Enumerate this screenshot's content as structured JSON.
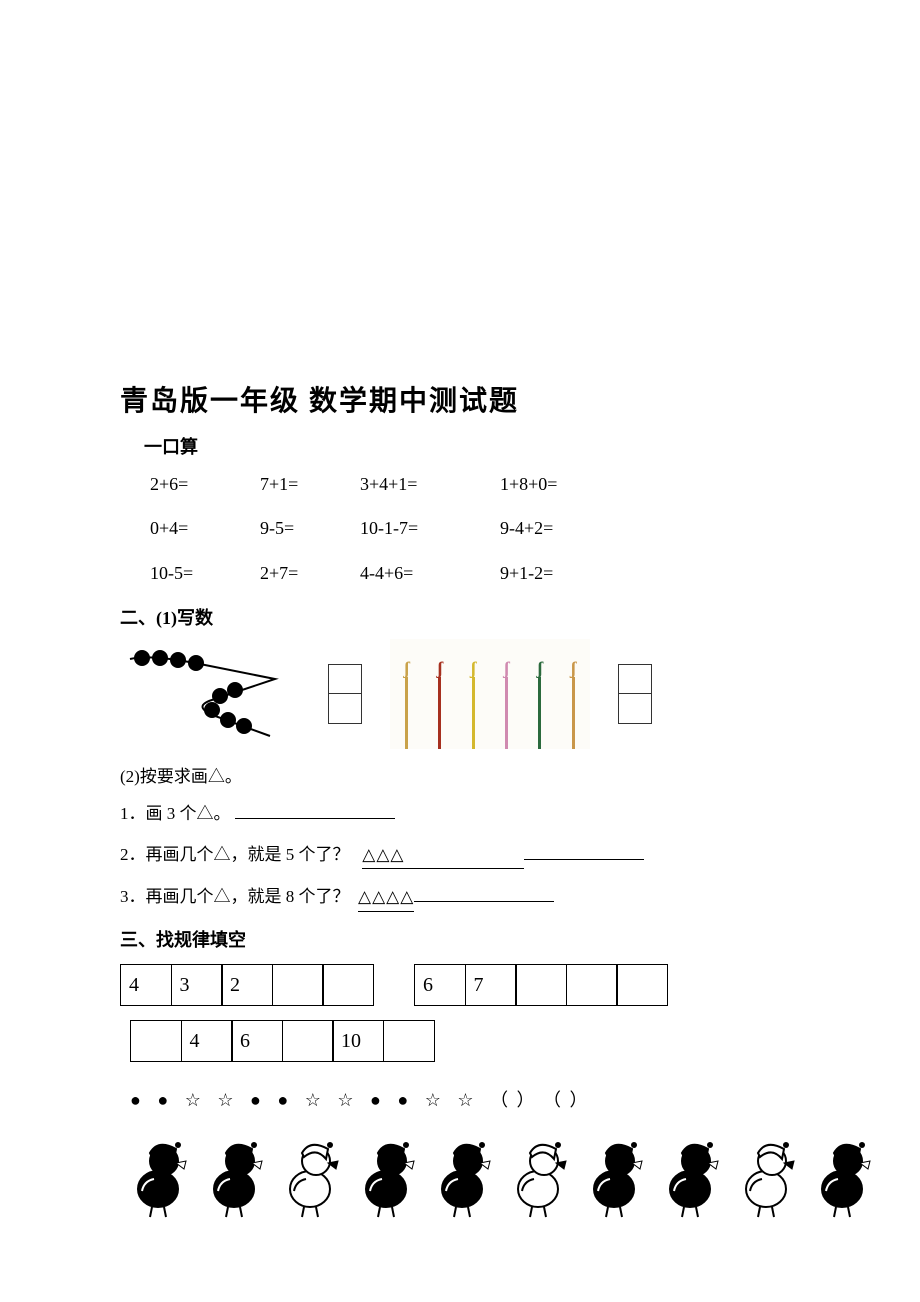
{
  "title": "青岛版一年级  数学期中测试题",
  "section1": {
    "label": "一口算",
    "rows": [
      [
        "2+6=",
        "7+1=",
        "3+4+1=",
        "1+8+0="
      ],
      [
        "0+4=",
        "9-5=",
        "10-1-7=",
        "9-4+2="
      ],
      [
        "10-5=",
        "2+7=",
        "4-4+6=",
        "9+1-2="
      ]
    ]
  },
  "section2": {
    "label": "二、(1)写数",
    "bead_count": 9,
    "bead_color": "#000000",
    "umbrellas": [
      {
        "color": "#c9a24a"
      },
      {
        "color": "#a6301f"
      },
      {
        "color": "#d4b82e"
      },
      {
        "color": "#d08ab0"
      },
      {
        "color": "#2b6a3d"
      },
      {
        "color": "#c9974a"
      }
    ],
    "sub_label": "(2)按要求画△。",
    "q1_prefix": "1．画 3 个△。",
    "q2_prefix": "2．再画几个△，就是 5 个了？",
    "q2_tri": "△△△",
    "q3_prefix": "3．再画几个△，就是 8 个了？",
    "q3_tri": "△△△△"
  },
  "section3": {
    "label": "三、找规律填空",
    "table_a": [
      "4",
      "3",
      "2",
      "",
      ""
    ],
    "table_b": [
      "6",
      "7",
      "",
      "",
      ""
    ],
    "table_c": [
      "",
      "4",
      "6",
      "",
      "10",
      ""
    ],
    "pattern_symbols": "● ● ☆ ☆ ● ● ☆ ☆ ● ● ☆ ☆",
    "pattern_parens": "（    ）  （    ）",
    "ducks": [
      {
        "dark": true
      },
      {
        "dark": true
      },
      {
        "dark": false
      },
      {
        "dark": true
      },
      {
        "dark": true
      },
      {
        "dark": false
      },
      {
        "dark": true
      },
      {
        "dark": true
      },
      {
        "dark": false
      },
      {
        "dark": true
      }
    ]
  }
}
